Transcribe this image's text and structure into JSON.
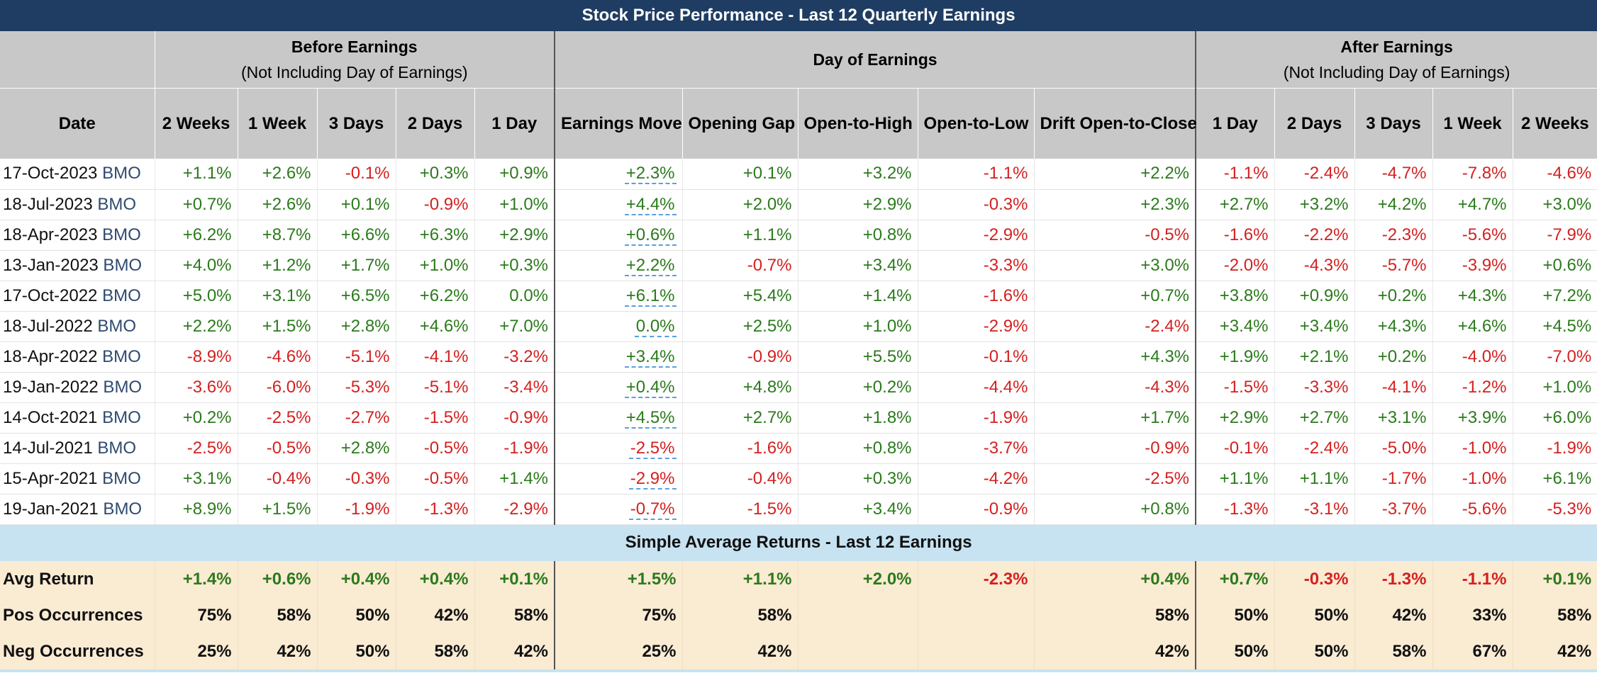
{
  "title": "Stock Price Performance - Last 12 Quarterly Earnings",
  "groups": {
    "before": {
      "title": "Before Earnings",
      "sub": "(Not Including Day of Earnings)"
    },
    "day": {
      "title": "Day of Earnings"
    },
    "after": {
      "title": "After Earnings",
      "sub": "(Not Including Day of Earnings)"
    }
  },
  "columns": {
    "date": "Date",
    "before": [
      "2 Weeks",
      "1 Week",
      "3 Days",
      "2 Days",
      "1 Day"
    ],
    "day": [
      "Earnings Move",
      "Opening Gap",
      "Open-to-High",
      "Open-to-Low",
      "Drift Open-to-Close"
    ],
    "after": [
      "1 Day",
      "2 Days",
      "3 Days",
      "1 Week",
      "2 Weeks"
    ]
  },
  "colors": {
    "positive": "#2b7a1c",
    "negative": "#d42020",
    "header": "#1f3d63"
  },
  "rows": [
    {
      "date": "17-Oct-2023",
      "ticker": "BMO",
      "before": [
        "+1.1%",
        "+2.6%",
        "-0.1%",
        "+0.3%",
        "+0.9%"
      ],
      "day": [
        "+2.3%",
        "+0.1%",
        "+3.2%",
        "-1.1%",
        "+2.2%"
      ],
      "after": [
        "-1.1%",
        "-2.4%",
        "-4.7%",
        "-7.8%",
        "-4.6%"
      ]
    },
    {
      "date": "18-Jul-2023",
      "ticker": "BMO",
      "before": [
        "+0.7%",
        "+2.6%",
        "+0.1%",
        "-0.9%",
        "+1.0%"
      ],
      "day": [
        "+4.4%",
        "+2.0%",
        "+2.9%",
        "-0.3%",
        "+2.3%"
      ],
      "after": [
        "+2.7%",
        "+3.2%",
        "+4.2%",
        "+4.7%",
        "+3.0%"
      ]
    },
    {
      "date": "18-Apr-2023",
      "ticker": "BMO",
      "before": [
        "+6.2%",
        "+8.7%",
        "+6.6%",
        "+6.3%",
        "+2.9%"
      ],
      "day": [
        "+0.6%",
        "+1.1%",
        "+0.8%",
        "-2.9%",
        "-0.5%"
      ],
      "after": [
        "-1.6%",
        "-2.2%",
        "-2.3%",
        "-5.6%",
        "-7.9%"
      ]
    },
    {
      "date": "13-Jan-2023",
      "ticker": "BMO",
      "before": [
        "+4.0%",
        "+1.2%",
        "+1.7%",
        "+1.0%",
        "+0.3%"
      ],
      "day": [
        "+2.2%",
        "-0.7%",
        "+3.4%",
        "-3.3%",
        "+3.0%"
      ],
      "after": [
        "-2.0%",
        "-4.3%",
        "-5.7%",
        "-3.9%",
        "+0.6%"
      ]
    },
    {
      "date": "17-Oct-2022",
      "ticker": "BMO",
      "before": [
        "+5.0%",
        "+3.1%",
        "+6.5%",
        "+6.2%",
        "0.0%"
      ],
      "day": [
        "+6.1%",
        "+5.4%",
        "+1.4%",
        "-1.6%",
        "+0.7%"
      ],
      "after": [
        "+3.8%",
        "+0.9%",
        "+0.2%",
        "+4.3%",
        "+7.2%"
      ]
    },
    {
      "date": "18-Jul-2022",
      "ticker": "BMO",
      "before": [
        "+2.2%",
        "+1.5%",
        "+2.8%",
        "+4.6%",
        "+7.0%"
      ],
      "day": [
        "0.0%",
        "+2.5%",
        "+1.0%",
        "-2.9%",
        "-2.4%"
      ],
      "after": [
        "+3.4%",
        "+3.4%",
        "+4.3%",
        "+4.6%",
        "+4.5%"
      ]
    },
    {
      "date": "18-Apr-2022",
      "ticker": "BMO",
      "before": [
        "-8.9%",
        "-4.6%",
        "-5.1%",
        "-4.1%",
        "-3.2%"
      ],
      "day": [
        "+3.4%",
        "-0.9%",
        "+5.5%",
        "-0.1%",
        "+4.3%"
      ],
      "after": [
        "+1.9%",
        "+2.1%",
        "+0.2%",
        "-4.0%",
        "-7.0%"
      ]
    },
    {
      "date": "19-Jan-2022",
      "ticker": "BMO",
      "before": [
        "-3.6%",
        "-6.0%",
        "-5.3%",
        "-5.1%",
        "-3.4%"
      ],
      "day": [
        "+0.4%",
        "+4.8%",
        "+0.2%",
        "-4.4%",
        "-4.3%"
      ],
      "after": [
        "-1.5%",
        "-3.3%",
        "-4.1%",
        "-1.2%",
        "+1.0%"
      ]
    },
    {
      "date": "14-Oct-2021",
      "ticker": "BMO",
      "before": [
        "+0.2%",
        "-2.5%",
        "-2.7%",
        "-1.5%",
        "-0.9%"
      ],
      "day": [
        "+4.5%",
        "+2.7%",
        "+1.8%",
        "-1.9%",
        "+1.7%"
      ],
      "after": [
        "+2.9%",
        "+2.7%",
        "+3.1%",
        "+3.9%",
        "+6.0%"
      ]
    },
    {
      "date": "14-Jul-2021",
      "ticker": "BMO",
      "before": [
        "-2.5%",
        "-0.5%",
        "+2.8%",
        "-0.5%",
        "-1.9%"
      ],
      "day": [
        "-2.5%",
        "-1.6%",
        "+0.8%",
        "-3.7%",
        "-0.9%"
      ],
      "after": [
        "-0.1%",
        "-2.4%",
        "-5.0%",
        "-1.0%",
        "-1.9%"
      ]
    },
    {
      "date": "15-Apr-2021",
      "ticker": "BMO",
      "before": [
        "+3.1%",
        "-0.4%",
        "-0.3%",
        "-0.5%",
        "+1.4%"
      ],
      "day": [
        "-2.9%",
        "-0.4%",
        "+0.3%",
        "-4.2%",
        "-2.5%"
      ],
      "after": [
        "+1.1%",
        "+1.1%",
        "-1.7%",
        "-1.0%",
        "+6.1%"
      ]
    },
    {
      "date": "19-Jan-2021",
      "ticker": "BMO",
      "before": [
        "+8.9%",
        "+1.5%",
        "-1.9%",
        "-1.3%",
        "-2.9%"
      ],
      "day": [
        "-0.7%",
        "-1.5%",
        "+3.4%",
        "-0.9%",
        "+0.8%"
      ],
      "after": [
        "-1.3%",
        "-3.1%",
        "-3.7%",
        "-5.6%",
        "-5.3%"
      ]
    }
  ],
  "summary": {
    "title": "Simple Average Returns - Last 12 Earnings",
    "rows": [
      {
        "label": "Avg Return",
        "before": [
          "+1.4%",
          "+0.6%",
          "+0.4%",
          "+0.4%",
          "+0.1%"
        ],
        "day": [
          "+1.5%",
          "+1.1%",
          "+2.0%",
          "-2.3%",
          "+0.4%"
        ],
        "after": [
          "+0.7%",
          "-0.3%",
          "-1.3%",
          "-1.1%",
          "+0.1%"
        ]
      },
      {
        "label": "Pos Occurrences",
        "before": [
          "75%",
          "58%",
          "50%",
          "42%",
          "58%"
        ],
        "day": [
          "75%",
          "58%",
          "",
          "",
          "58%"
        ],
        "after": [
          "50%",
          "50%",
          "42%",
          "33%",
          "58%"
        ]
      },
      {
        "label": "Neg Occurrences",
        "before": [
          "25%",
          "42%",
          "50%",
          "58%",
          "42%"
        ],
        "day": [
          "25%",
          "42%",
          "",
          "",
          "42%"
        ],
        "after": [
          "50%",
          "50%",
          "58%",
          "67%",
          "42%"
        ]
      }
    ]
  }
}
